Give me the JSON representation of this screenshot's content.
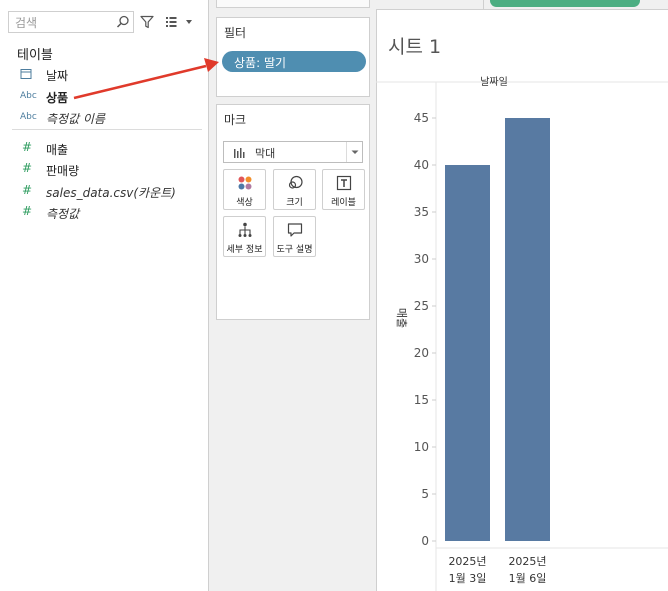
{
  "search": {
    "placeholder": "검색"
  },
  "data_pane": {
    "tables_heading": "테이블",
    "fields": [
      {
        "name": "날짜",
        "type_icon": "calendar-icon",
        "type_label": "",
        "kind": "dimension"
      },
      {
        "name": "상품",
        "type_icon": "abc-icon",
        "type_label": "Abc",
        "kind": "dimension"
      },
      {
        "name": "측정값 이름",
        "type_icon": "abc-icon",
        "type_label": "Abc",
        "kind": "dimension",
        "italic": true
      },
      {
        "name": "매출",
        "type_icon": "measure-icon",
        "type_label": "#",
        "kind": "measure"
      },
      {
        "name": "판매량",
        "type_icon": "measure-icon",
        "type_label": "#",
        "kind": "measure"
      },
      {
        "name": "sales_data.csv(카운트)",
        "type_icon": "measure-icon",
        "type_label": "#",
        "kind": "measure",
        "italic": true
      },
      {
        "name": "측정값",
        "type_icon": "measure-icon",
        "type_label": "#",
        "kind": "measure",
        "italic": true
      }
    ]
  },
  "filters": {
    "title": "필터",
    "pills": [
      {
        "label": "상품: 딸기"
      }
    ]
  },
  "marks": {
    "title": "마크",
    "mark_type": "막대",
    "buttons": [
      {
        "label": "색상",
        "icon": "color-dots-icon"
      },
      {
        "label": "크기",
        "icon": "size-icon"
      },
      {
        "label": "레이블",
        "icon": "text-label-icon"
      },
      {
        "label": "세부 정보",
        "icon": "detail-icon"
      },
      {
        "label": "도구 설명",
        "icon": "tooltip-icon"
      }
    ]
  },
  "sheet": {
    "title": "시트 1"
  },
  "colors": {
    "bar": "#587aa2",
    "pill": "#4f8eb1",
    "arrow": "#e03a2b",
    "measure_icon": "#2e9c5f",
    "dimension_icon": "#4d7d9e"
  },
  "chart_data": {
    "type": "bar",
    "column_header": "날짜일",
    "categories": [
      [
        "2025년",
        "1월 3일"
      ],
      [
        "2025년",
        "1월 6일"
      ]
    ],
    "values": [
      40,
      45
    ],
    "ylabel": "매출",
    "ylim": [
      0,
      47
    ],
    "yticks": [
      0,
      5,
      10,
      15,
      20,
      25,
      30,
      35,
      40,
      45
    ],
    "grid": false
  }
}
